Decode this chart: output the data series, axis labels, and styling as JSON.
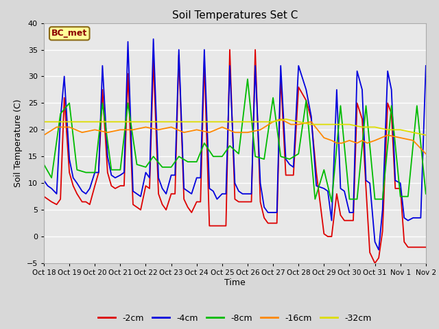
{
  "title": "Soil Temperatures Set C",
  "xlabel": "Time",
  "ylabel": "Soil Temperature (C)",
  "ylim": [
    -5,
    40
  ],
  "xlim": [
    0,
    15
  ],
  "fig_bg_color": "#d8d8d8",
  "plot_bg_color": "#e8e8e8",
  "grid_color": "white",
  "annotation_text": "BC_met",
  "x_tick_labels": [
    "Oct 18",
    "Oct 19",
    "Oct 20",
    "Oct 21",
    "Oct 22",
    "Oct 23",
    "Oct 24",
    "Oct 25",
    "Oct 26",
    "Oct 27",
    "Oct 28",
    "Oct 29",
    "Oct 30",
    "Oct 31",
    "Nov 1",
    "Nov 2"
  ],
  "series": {
    "2cm": {
      "color": "#dd0000",
      "label": "-2cm",
      "x": [
        0.0,
        0.15,
        0.3,
        0.5,
        0.65,
        0.8,
        1.0,
        1.15,
        1.3,
        1.5,
        1.65,
        1.8,
        2.0,
        2.15,
        2.3,
        2.5,
        2.65,
        2.8,
        3.0,
        3.15,
        3.3,
        3.5,
        3.65,
        3.8,
        4.0,
        4.15,
        4.3,
        4.5,
        4.65,
        4.8,
        5.0,
        5.15,
        5.3,
        5.5,
        5.65,
        5.8,
        6.0,
        6.15,
        6.3,
        6.5,
        6.65,
        6.8,
        7.0,
        7.15,
        7.3,
        7.5,
        7.65,
        7.8,
        8.0,
        8.15,
        8.3,
        8.5,
        8.65,
        8.8,
        9.0,
        9.15,
        9.3,
        9.5,
        9.65,
        9.8,
        10.0,
        10.3,
        10.5,
        10.7,
        11.0,
        11.15,
        11.3,
        11.5,
        11.65,
        11.8,
        12.0,
        12.15,
        12.3,
        12.5,
        12.65,
        12.8,
        13.0,
        13.15,
        13.3,
        13.5,
        13.65,
        13.8,
        14.0,
        14.15,
        14.3,
        14.5,
        14.65,
        14.8,
        15.0
      ],
      "y": [
        7.5,
        7.0,
        6.5,
        6.0,
        7.0,
        26.0,
        12.0,
        9.5,
        8.0,
        6.5,
        6.5,
        6.0,
        9.5,
        12.0,
        27.5,
        12.0,
        9.5,
        9.0,
        9.5,
        9.5,
        30.5,
        6.0,
        5.5,
        5.0,
        9.5,
        9.0,
        33.0,
        8.0,
        6.0,
        5.0,
        8.0,
        8.0,
        34.0,
        7.0,
        5.5,
        4.5,
        6.5,
        6.5,
        33.0,
        2.0,
        2.0,
        2.0,
        2.0,
        2.0,
        35.0,
        7.0,
        6.5,
        6.5,
        6.5,
        6.5,
        35.0,
        6.5,
        3.5,
        2.5,
        2.5,
        2.5,
        30.0,
        11.5,
        11.5,
        11.5,
        28.0,
        25.5,
        22.0,
        12.0,
        0.5,
        0.0,
        0.0,
        8.0,
        4.0,
        3.0,
        3.0,
        3.0,
        25.0,
        22.0,
        9.0,
        -3.0,
        -5.0,
        -4.0,
        1.0,
        25.0,
        23.0,
        9.0,
        9.0,
        -1.0,
        -2.0,
        -2.0,
        -2.0,
        -2.0,
        -2.0
      ]
    },
    "4cm": {
      "color": "#0000dd",
      "label": "-4cm",
      "x": [
        0.0,
        0.15,
        0.3,
        0.5,
        0.65,
        0.8,
        1.0,
        1.15,
        1.3,
        1.5,
        1.65,
        1.8,
        2.0,
        2.15,
        2.3,
        2.5,
        2.65,
        2.8,
        3.0,
        3.15,
        3.3,
        3.5,
        3.65,
        3.8,
        4.0,
        4.15,
        4.3,
        4.5,
        4.65,
        4.8,
        5.0,
        5.15,
        5.3,
        5.5,
        5.65,
        5.8,
        6.0,
        6.15,
        6.3,
        6.5,
        6.65,
        6.8,
        7.0,
        7.15,
        7.3,
        7.5,
        7.65,
        7.8,
        8.0,
        8.15,
        8.3,
        8.5,
        8.65,
        8.8,
        9.0,
        9.15,
        9.3,
        9.5,
        9.65,
        9.8,
        10.0,
        10.3,
        10.5,
        10.7,
        11.0,
        11.15,
        11.3,
        11.5,
        11.65,
        11.8,
        12.0,
        12.15,
        12.3,
        12.5,
        12.65,
        12.8,
        13.0,
        13.15,
        13.3,
        13.5,
        13.65,
        13.8,
        14.0,
        14.15,
        14.3,
        14.5,
        14.65,
        14.8,
        15.0
      ],
      "y": [
        10.5,
        9.5,
        9.0,
        8.0,
        22.0,
        30.0,
        14.5,
        11.0,
        10.0,
        8.5,
        8.0,
        9.0,
        12.0,
        12.0,
        32.0,
        15.0,
        11.5,
        11.0,
        11.5,
        12.0,
        36.5,
        8.5,
        8.0,
        7.5,
        12.0,
        11.0,
        37.0,
        11.0,
        9.0,
        8.0,
        11.5,
        11.5,
        35.0,
        9.0,
        8.5,
        8.0,
        11.0,
        11.0,
        35.0,
        9.0,
        8.5,
        7.0,
        8.0,
        8.0,
        32.0,
        10.0,
        8.5,
        8.0,
        8.0,
        8.0,
        32.0,
        10.0,
        5.5,
        4.5,
        4.5,
        4.5,
        32.0,
        14.5,
        13.5,
        13.0,
        32.0,
        27.5,
        22.5,
        9.5,
        9.0,
        8.5,
        3.0,
        27.5,
        9.0,
        8.5,
        4.5,
        4.5,
        31.0,
        27.5,
        10.5,
        10.0,
        -1.0,
        -2.5,
        5.0,
        31.0,
        27.5,
        10.5,
        10.0,
        3.5,
        3.0,
        3.5,
        3.5,
        3.5,
        32.0
      ]
    },
    "8cm": {
      "color": "#00bb00",
      "label": "-8cm",
      "x": [
        0.0,
        0.3,
        0.65,
        1.0,
        1.3,
        1.65,
        2.0,
        2.3,
        2.65,
        3.0,
        3.3,
        3.65,
        4.0,
        4.3,
        4.65,
        5.0,
        5.3,
        5.65,
        6.0,
        6.3,
        6.65,
        7.0,
        7.3,
        7.65,
        8.0,
        8.3,
        8.65,
        9.0,
        9.3,
        9.65,
        10.0,
        10.3,
        10.65,
        11.0,
        11.3,
        11.65,
        12.0,
        12.3,
        12.65,
        13.0,
        13.3,
        13.65,
        14.0,
        14.3,
        14.65,
        15.0
      ],
      "y": [
        13.5,
        11.0,
        23.0,
        25.0,
        12.5,
        12.0,
        12.0,
        25.0,
        12.5,
        12.5,
        25.0,
        13.5,
        13.0,
        15.0,
        13.0,
        13.0,
        15.0,
        14.0,
        14.0,
        17.5,
        15.0,
        15.0,
        17.0,
        15.5,
        29.5,
        15.0,
        14.5,
        26.0,
        15.0,
        14.5,
        15.5,
        25.5,
        7.0,
        12.5,
        6.5,
        24.5,
        7.0,
        7.0,
        24.5,
        7.0,
        7.0,
        24.5,
        7.5,
        7.5,
        24.5,
        8.0
      ]
    },
    "16cm": {
      "color": "#ff8800",
      "label": "-16cm",
      "x": [
        0.0,
        0.5,
        1.0,
        1.5,
        2.0,
        2.5,
        3.0,
        3.5,
        4.0,
        4.5,
        5.0,
        5.5,
        6.0,
        6.5,
        7.0,
        7.5,
        8.0,
        8.5,
        9.0,
        9.3,
        9.5,
        9.7,
        10.0,
        10.5,
        11.0,
        11.3,
        11.5,
        11.7,
        12.0,
        12.3,
        12.5,
        12.7,
        13.0,
        13.5,
        14.0,
        14.5,
        15.0
      ],
      "y": [
        19.0,
        20.5,
        20.5,
        19.5,
        20.0,
        19.5,
        20.0,
        20.0,
        20.5,
        20.0,
        20.5,
        19.5,
        20.0,
        19.5,
        20.5,
        19.5,
        19.5,
        20.0,
        21.5,
        22.0,
        21.5,
        21.0,
        21.0,
        21.5,
        18.5,
        18.0,
        17.5,
        17.5,
        18.0,
        17.5,
        18.0,
        17.5,
        18.0,
        19.0,
        18.5,
        18.0,
        15.5
      ]
    },
    "32cm": {
      "color": "#dddd00",
      "label": "-32cm",
      "x": [
        0.0,
        0.5,
        1.0,
        1.5,
        2.0,
        2.5,
        3.0,
        3.5,
        4.0,
        4.5,
        5.0,
        5.5,
        6.0,
        6.5,
        7.0,
        7.5,
        8.0,
        8.5,
        9.0,
        9.5,
        10.0,
        10.5,
        11.0,
        11.5,
        12.0,
        12.5,
        13.0,
        13.5,
        14.0,
        14.5,
        15.0
      ],
      "y": [
        21.5,
        21.5,
        21.5,
        21.5,
        21.5,
        21.5,
        21.5,
        21.5,
        21.5,
        21.5,
        21.5,
        21.5,
        21.5,
        21.5,
        21.5,
        21.5,
        21.5,
        21.5,
        21.5,
        22.0,
        21.5,
        21.0,
        21.0,
        21.0,
        21.0,
        20.5,
        20.5,
        20.0,
        20.0,
        19.5,
        19.0
      ]
    }
  }
}
